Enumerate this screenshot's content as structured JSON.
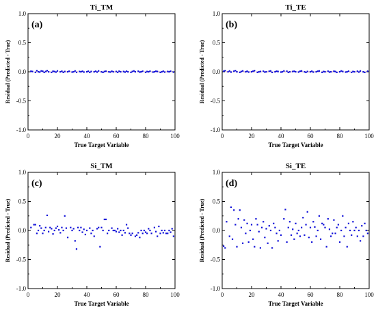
{
  "colors": {
    "points": "#1010d8",
    "zero_line": "#d9a0a0",
    "axes": "#000000"
  },
  "chart_data": [
    {
      "type": "scatter",
      "title": "Ti_TM",
      "tag": "(a)",
      "xlabel": "True Target Variable",
      "ylabel": "Residual (Predicted - True)",
      "xlim": [
        0,
        100
      ],
      "ylim": [
        -1.0,
        1.0
      ],
      "xticks": [
        0,
        20,
        40,
        60,
        80,
        100
      ],
      "yticks": [
        -1.0,
        -0.5,
        0.0,
        0.5,
        1.0
      ],
      "ytick_labels": [
        "-1.0",
        "-0.5",
        "0.0",
        "0.5",
        "1.0"
      ],
      "zero_line": true,
      "x": [
        2,
        3,
        5,
        6,
        7,
        8,
        9,
        10,
        11,
        12,
        13,
        14,
        16,
        17,
        18,
        19,
        20,
        22,
        23,
        24,
        25,
        27,
        28,
        30,
        31,
        32,
        33,
        35,
        36,
        37,
        38,
        40,
        41,
        42,
        43,
        45,
        46,
        47,
        48,
        50,
        51,
        52,
        53,
        55,
        56,
        57,
        58,
        60,
        61,
        62,
        63,
        65,
        66,
        67,
        68,
        70,
        71,
        72,
        73,
        75,
        76,
        77,
        78,
        80,
        81,
        82,
        83,
        85,
        86,
        87,
        88,
        90,
        91,
        92,
        93,
        95,
        96,
        97,
        99
      ],
      "y": [
        0.01,
        0.005,
        -0.01,
        0.02,
        0.0,
        -0.005,
        0.015,
        0.01,
        -0.01,
        0.005,
        0.02,
        0.0,
        -0.01,
        0.01,
        0.005,
        -0.005,
        0.015,
        0.0,
        0.01,
        -0.01,
        0.005,
        0.0,
        0.01,
        -0.005,
        0.0,
        0.015,
        -0.01,
        0.005,
        0.0,
        0.01,
        -0.005,
        0.0,
        0.01,
        -0.01,
        0.005,
        0.0,
        0.01,
        -0.005,
        0.015,
        0.0,
        -0.01,
        0.005,
        0.01,
        0.0,
        -0.005,
        0.01,
        0.0,
        0.005,
        -0.01,
        0.01,
        0.0,
        0.005,
        -0.005,
        0.01,
        0.0,
        -0.01,
        0.005,
        0.015,
        0.0,
        0.01,
        -0.005,
        0.0,
        0.01,
        -0.01,
        0.005,
        0.0,
        0.01,
        -0.005,
        0.0,
        0.01,
        0.005,
        -0.01,
        0.0,
        0.01,
        -0.005,
        0.005,
        0.0,
        0.01,
        -0.005
      ]
    },
    {
      "type": "scatter",
      "title": "Ti_TE",
      "tag": "(b)",
      "xlabel": "True Target Variable",
      "ylabel": "Residual (Predicted - True)",
      "xlim": [
        0,
        100
      ],
      "ylim": [
        -1.0,
        1.0
      ],
      "xticks": [
        0,
        20,
        40,
        60,
        80,
        100
      ],
      "yticks": [
        -1.0,
        -0.5,
        0.0,
        0.5,
        1.0
      ],
      "ytick_labels": [
        "-1.0",
        "-0.5",
        "0.0",
        "0.5",
        "1.0"
      ],
      "zero_line": true,
      "x": [
        1,
        2,
        4,
        5,
        6,
        8,
        9,
        10,
        12,
        13,
        14,
        16,
        17,
        18,
        20,
        21,
        22,
        24,
        25,
        26,
        28,
        29,
        30,
        32,
        33,
        34,
        36,
        37,
        38,
        40,
        41,
        42,
        44,
        45,
        46,
        48,
        49,
        50,
        52,
        53,
        54,
        56,
        57,
        58,
        60,
        61,
        62,
        64,
        65,
        66,
        68,
        69,
        70,
        72,
        73,
        74,
        76,
        77,
        78,
        80,
        81,
        82,
        84,
        85,
        86,
        88,
        89,
        90,
        92,
        93,
        94,
        96,
        97,
        99
      ],
      "y": [
        0.01,
        0.02,
        0.0,
        0.015,
        -0.005,
        0.01,
        0.02,
        0.0,
        -0.01,
        0.005,
        0.015,
        0.0,
        0.01,
        -0.005,
        0.0,
        0.01,
        0.02,
        -0.01,
        0.0,
        0.005,
        0.01,
        -0.005,
        0.0,
        0.01,
        0.015,
        -0.01,
        0.0,
        0.01,
        0.005,
        -0.005,
        0.0,
        0.015,
        0.01,
        -0.01,
        0.0,
        0.005,
        0.01,
        0.0,
        -0.005,
        0.01,
        0.015,
        0.0,
        -0.01,
        0.005,
        0.0,
        0.01,
        -0.005,
        0.0,
        0.01,
        0.015,
        -0.01,
        0.005,
        0.0,
        0.01,
        -0.005,
        0.0,
        0.01,
        0.005,
        -0.01,
        0.0,
        0.015,
        0.005,
        -0.005,
        0.0,
        0.01,
        -0.01,
        0.005,
        0.0,
        0.01,
        -0.005,
        0.015,
        0.0,
        -0.01,
        0.01
      ]
    },
    {
      "type": "scatter",
      "title": "Si_TM",
      "tag": "(c)",
      "xlabel": "True Target Variable",
      "ylabel": "Residual (Predicted - True)",
      "xlim": [
        0,
        100
      ],
      "ylim": [
        -1.0,
        1.0
      ],
      "xticks": [
        0,
        20,
        40,
        60,
        80,
        100
      ],
      "yticks": [
        -1.0,
        -0.5,
        0.0,
        0.5,
        1.0
      ],
      "ytick_labels": [
        "-1.0",
        "-0.5",
        "0.0",
        "0.5",
        "1.0"
      ],
      "zero_line": false,
      "x": [
        2,
        4,
        5,
        6,
        7,
        8,
        9,
        10,
        11,
        12,
        13,
        14,
        15,
        16,
        17,
        18,
        19,
        20,
        21,
        22,
        23,
        24,
        25,
        26,
        27,
        29,
        30,
        31,
        32,
        33,
        34,
        35,
        36,
        37,
        38,
        39,
        40,
        42,
        43,
        44,
        45,
        47,
        48,
        49,
        50,
        51,
        52,
        53,
        54,
        55,
        57,
        58,
        59,
        60,
        61,
        62,
        63,
        64,
        65,
        66,
        67,
        68,
        69,
        70,
        71,
        73,
        74,
        75,
        76,
        77,
        78,
        79,
        80,
        81,
        82,
        83,
        84,
        86,
        87,
        88,
        89,
        90,
        91,
        92,
        93,
        94,
        95,
        96,
        97,
        98,
        99
      ],
      "y": [
        0.05,
        0.1,
        0.1,
        -0.05,
        0.0,
        0.08,
        0.04,
        -0.05,
        0.0,
        0.05,
        0.26,
        -0.02,
        0.05,
        0.03,
        -0.06,
        0.0,
        0.04,
        0.07,
        0.01,
        -0.04,
        0.05,
        0.0,
        0.25,
        0.04,
        -0.12,
        0.05,
        0.0,
        0.03,
        -0.18,
        -0.32,
        0.05,
        0.0,
        0.05,
        -0.03,
        0.02,
        -0.07,
        0.0,
        0.04,
        -0.05,
        0.0,
        -0.1,
        0.03,
        0.05,
        -0.28,
        0.05,
        0.0,
        0.19,
        0.19,
        -0.05,
        0.0,
        0.04,
        0.0,
        0.0,
        -0.02,
        0.03,
        -0.03,
        0.0,
        -0.08,
        0.0,
        -0.04,
        0.1,
        0.04,
        -0.05,
        -0.08,
        -0.05,
        -0.1,
        -0.08,
        -0.04,
        -0.12,
        0.0,
        -0.05,
        0.0,
        -0.03,
        -0.05,
        0.03,
        0.0,
        -0.05,
        0.05,
        -0.02,
        -0.1,
        0.07,
        -0.05,
        0.0,
        -0.04,
        0.0,
        -0.05,
        -0.05,
        0.0,
        -0.03,
        0.03,
        -0.1
      ]
    },
    {
      "type": "scatter",
      "title": "Si_TE",
      "tag": "(d)",
      "xlabel": "True Target Variable",
      "ylabel": "Residual (Predicted - True)",
      "xlim": [
        0,
        100
      ],
      "ylim": [
        -1.0,
        1.0
      ],
      "xticks": [
        0,
        20,
        40,
        60,
        80,
        100
      ],
      "yticks": [
        -1.0,
        -0.5,
        0.0,
        0.5,
        1.0
      ],
      "ytick_labels": [
        "-1.0",
        "-0.5",
        "0.0",
        "0.5",
        "1.0"
      ],
      "zero_line": false,
      "x": [
        1,
        2,
        3,
        5,
        6,
        7,
        8,
        9,
        10,
        11,
        12,
        13,
        14,
        15,
        16,
        17,
        18,
        19,
        20,
        21,
        22,
        23,
        24,
        25,
        26,
        27,
        28,
        29,
        30,
        31,
        32,
        33,
        34,
        35,
        36,
        37,
        38,
        39,
        40,
        42,
        43,
        44,
        45,
        46,
        47,
        48,
        49,
        50,
        51,
        52,
        53,
        54,
        55,
        56,
        57,
        58,
        59,
        60,
        61,
        62,
        63,
        64,
        65,
        66,
        67,
        68,
        69,
        70,
        71,
        72,
        73,
        74,
        75,
        76,
        77,
        78,
        79,
        80,
        81,
        82,
        83,
        84,
        85,
        86,
        87,
        88,
        89,
        90,
        91,
        92,
        93,
        94,
        95,
        96,
        97,
        98,
        99
      ],
      "y": [
        -0.27,
        -0.3,
        0.15,
        -0.1,
        0.4,
        -0.15,
        0.35,
        0.1,
        -0.28,
        0.2,
        0.35,
        0.05,
        -0.22,
        0.18,
        -0.05,
        0.12,
        -0.2,
        0.0,
        0.1,
        -0.15,
        -0.28,
        0.2,
        0.1,
        -0.02,
        -0.3,
        0.05,
        0.15,
        -0.12,
        0.03,
        -0.22,
        0.08,
        0.0,
        -0.3,
        0.12,
        0.05,
        -0.05,
        -0.18,
        0.0,
        -0.08,
        0.2,
        0.36,
        -0.2,
        0.05,
        0.15,
        -0.08,
        0.02,
        -0.15,
        0.12,
        -0.05,
        0.0,
        -0.1,
        0.05,
        0.22,
        -0.08,
        0.1,
        0.32,
        -0.12,
        0.05,
        -0.2,
        0.15,
        0.06,
        -0.1,
        0.0,
        0.25,
        -0.15,
        0.12,
        0.1,
        0.05,
        -0.28,
        0.2,
        0.02,
        -0.1,
        -0.05,
        0.18,
        -0.05,
        0.05,
        0.1,
        -0.2,
        0.0,
        0.25,
        -0.1,
        0.05,
        -0.28,
        0.12,
        0.0,
        -0.08,
        0.15,
        0.0,
        0.05,
        -0.1,
        0.0,
        -0.18,
        0.08,
        -0.1,
        0.12,
        0.0,
        -0.05
      ]
    }
  ]
}
